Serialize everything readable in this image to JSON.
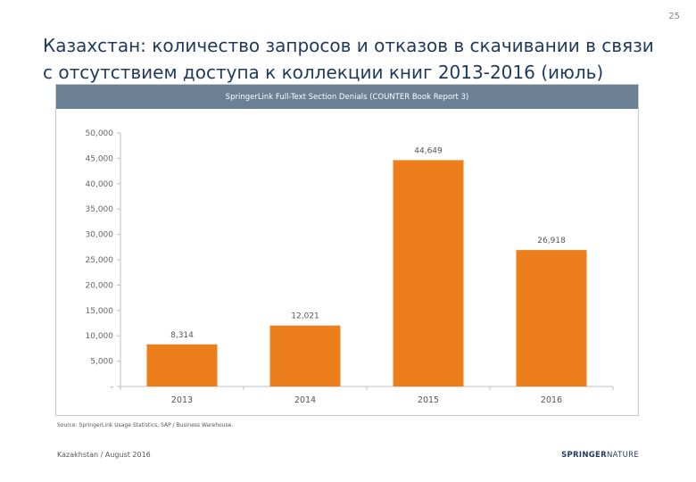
{
  "slide": {
    "page_number": "25",
    "title": "Казахстан: количество запросов и отказов в скачивании в связи с отсутствием доступа к коллекции книг 2013-2016 (июль)",
    "source_note": "Source: SpringerLink Usage Statistics, SAP / Business Warehouse.",
    "footer_left": "Kazakhstan / August 2016",
    "logo_part1": "SPRINGER",
    "logo_part2": "NATURE"
  },
  "colors": {
    "bar": "#ec7f1b",
    "header_band": "#6b7f95",
    "title": "#1f3a5c"
  },
  "chart_data": {
    "type": "bar",
    "title": "SpringerLink Full-Text Section Denials (COUNTER Book Report 3)",
    "categories": [
      "2013",
      "2014",
      "2015",
      "2016"
    ],
    "values": [
      8314,
      12021,
      44649,
      26918
    ],
    "value_labels": [
      "8,314",
      "12,021",
      "44,649",
      "26,918"
    ],
    "ylim": [
      0,
      50000
    ],
    "yticks": [
      0,
      5000,
      10000,
      15000,
      20000,
      25000,
      30000,
      35000,
      40000,
      45000,
      50000
    ],
    "ytick_labels": [
      "-",
      "5,000",
      "10,000",
      "15,000",
      "20,000",
      "25,000",
      "30,000",
      "35,000",
      "40,000",
      "45,000",
      "50,000"
    ],
    "grid": false,
    "legend": "none"
  }
}
